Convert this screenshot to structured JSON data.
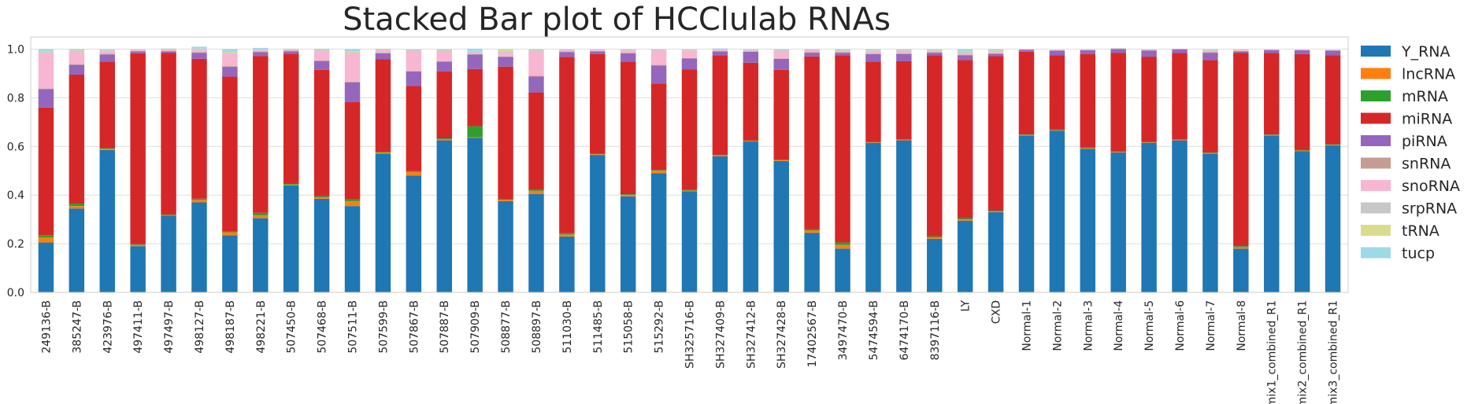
{
  "chart_data": {
    "type": "bar",
    "stacked": true,
    "title": "Stacked Bar plot of HCClulab RNAs",
    "xlabel": "",
    "ylabel": "",
    "ylim": [
      0,
      1.05
    ],
    "yticks": [
      "0.0",
      "0.2",
      "0.4",
      "0.6",
      "0.8",
      "1.0"
    ],
    "grid": true,
    "legend_position": "right",
    "categories": [
      "249136-B",
      "385247-B",
      "423976-B",
      "497411-B",
      "497497-B",
      "498127-B",
      "498187-B",
      "498221-B",
      "507450-B",
      "507468-B",
      "507511-B",
      "507599-B",
      "507867-B",
      "507887-B",
      "507909-B",
      "508877-B",
      "508897-B",
      "511030-B",
      "511485-B",
      "515058-B",
      "515292-B",
      "SH325716-B",
      "SH327409-B",
      "SH327412-B",
      "SH327428-B",
      "17402567-B",
      "3497470-B",
      "5474594-B",
      "6474170-B",
      "8397116-B",
      "LY",
      "CXD",
      "Normal-1",
      "Normal-2",
      "Normal-3",
      "Normal-4",
      "Normal-5",
      "Normal-6",
      "Normal-7",
      "Normal-8",
      "mix1_combined_R1",
      "mix2_combined_R1",
      "mix3_combined_R1"
    ],
    "series": [
      {
        "name": "Y_RNA",
        "color": "#1f77b4",
        "values": [
          0.205,
          0.345,
          0.585,
          0.19,
          0.315,
          0.37,
          0.235,
          0.305,
          0.44,
          0.385,
          0.355,
          0.57,
          0.48,
          0.625,
          0.635,
          0.375,
          0.405,
          0.23,
          0.565,
          0.395,
          0.49,
          0.415,
          0.56,
          0.62,
          0.54,
          0.245,
          0.18,
          0.615,
          0.625,
          0.22,
          0.295,
          0.33,
          0.645,
          0.665,
          0.59,
          0.575,
          0.615,
          0.625,
          0.57,
          0.18,
          0.645,
          0.58,
          0.605
        ]
      },
      {
        "name": "lncRNA",
        "color": "#ff7f0e",
        "values": [
          0.02,
          0.01,
          0.005,
          0.005,
          0.003,
          0.01,
          0.012,
          0.012,
          0.003,
          0.005,
          0.02,
          0.005,
          0.015,
          0.005,
          0.003,
          0.005,
          0.012,
          0.008,
          0.003,
          0.005,
          0.01,
          0.003,
          0.003,
          0.002,
          0.003,
          0.01,
          0.015,
          0.002,
          0.003,
          0.005,
          0.005,
          0.003,
          0.002,
          0.002,
          0.003,
          0.003,
          0.002,
          0.002,
          0.003,
          0.005,
          0.002,
          0.003,
          0.002
        ]
      },
      {
        "name": "mRNA",
        "color": "#2ca02c",
        "values": [
          0.01,
          0.01,
          0.003,
          0.003,
          0.002,
          0.005,
          0.005,
          0.01,
          0.003,
          0.005,
          0.008,
          0.003,
          0.003,
          0.003,
          0.045,
          0.003,
          0.005,
          0.005,
          0.002,
          0.003,
          0.003,
          0.003,
          0.002,
          0.002,
          0.002,
          0.005,
          0.01,
          0.002,
          0.002,
          0.005,
          0.005,
          0.003,
          0.002,
          0.002,
          0.002,
          0.002,
          0.002,
          0.002,
          0.002,
          0.005,
          0.002,
          0.002,
          0.002
        ]
      },
      {
        "name": "miRNA",
        "color": "#d62728",
        "values": [
          0.525,
          0.53,
          0.355,
          0.785,
          0.665,
          0.575,
          0.635,
          0.645,
          0.535,
          0.52,
          0.4,
          0.38,
          0.35,
          0.275,
          0.235,
          0.545,
          0.4,
          0.725,
          0.41,
          0.545,
          0.355,
          0.495,
          0.41,
          0.32,
          0.37,
          0.71,
          0.77,
          0.33,
          0.32,
          0.745,
          0.65,
          0.635,
          0.34,
          0.305,
          0.385,
          0.405,
          0.35,
          0.355,
          0.38,
          0.795,
          0.335,
          0.395,
          0.365
        ]
      },
      {
        "name": "piRNA",
        "color": "#9467bd",
        "values": [
          0.075,
          0.04,
          0.03,
          0.008,
          0.005,
          0.025,
          0.04,
          0.015,
          0.01,
          0.035,
          0.08,
          0.025,
          0.06,
          0.04,
          0.06,
          0.04,
          0.065,
          0.02,
          0.01,
          0.035,
          0.075,
          0.045,
          0.015,
          0.045,
          0.045,
          0.015,
          0.01,
          0.03,
          0.03,
          0.01,
          0.02,
          0.01,
          0.008,
          0.02,
          0.015,
          0.015,
          0.025,
          0.015,
          0.03,
          0.005,
          0.012,
          0.015,
          0.02
        ]
      },
      {
        "name": "snRNA",
        "color": "#c49c94",
        "values": [
          0.003,
          0.003,
          0.003,
          0.002,
          0.003,
          0.002,
          0.003,
          0.003,
          0.003,
          0.003,
          0.003,
          0.002,
          0.002,
          0.002,
          0.002,
          0.002,
          0.003,
          0.002,
          0.002,
          0.002,
          0.002,
          0.002,
          0.002,
          0.002,
          0.002,
          0.002,
          0.002,
          0.002,
          0.002,
          0.002,
          0.002,
          0.002,
          0.001,
          0.001,
          0.001,
          0.001,
          0.001,
          0.001,
          0.002,
          0.002,
          0.001,
          0.001,
          0.001
        ]
      },
      {
        "name": "snoRNA",
        "color": "#f7b6d2",
        "values": [
          0.145,
          0.05,
          0.01,
          0.003,
          0.005,
          0.01,
          0.05,
          0.005,
          0.003,
          0.04,
          0.115,
          0.01,
          0.08,
          0.04,
          0.005,
          0.015,
          0.1,
          0.005,
          0.003,
          0.01,
          0.06,
          0.03,
          0.003,
          0.003,
          0.03,
          0.008,
          0.005,
          0.01,
          0.01,
          0.005,
          0.005,
          0.005,
          0.001,
          0.001,
          0.001,
          0.001,
          0.002,
          0.001,
          0.005,
          0.003,
          0.001,
          0.001,
          0.001
        ]
      },
      {
        "name": "srpRNA",
        "color": "#c7c7c7",
        "values": [
          0.005,
          0.005,
          0.005,
          0.002,
          0.002,
          0.003,
          0.005,
          0.003,
          0.002,
          0.005,
          0.005,
          0.003,
          0.005,
          0.005,
          0.005,
          0.005,
          0.005,
          0.003,
          0.002,
          0.003,
          0.003,
          0.003,
          0.003,
          0.003,
          0.005,
          0.003,
          0.003,
          0.003,
          0.003,
          0.003,
          0.005,
          0.005,
          0.001,
          0.001,
          0.001,
          0.001,
          0.001,
          0.001,
          0.003,
          0.002,
          0.001,
          0.001,
          0.001
        ]
      },
      {
        "name": "tRNA",
        "color": "#dbdb8d",
        "values": [
          0.002,
          0.002,
          0.002,
          0.001,
          0.002,
          0.002,
          0.003,
          0.001,
          0.001,
          0.002,
          0.004,
          0.002,
          0.002,
          0.003,
          0.002,
          0.008,
          0.003,
          0.001,
          0.001,
          0.001,
          0.001,
          0.002,
          0.001,
          0.001,
          0.001,
          0.001,
          0.002,
          0.002,
          0.002,
          0.002,
          0.003,
          0.002,
          0.0,
          0.0,
          0.001,
          0.001,
          0.001,
          0.0,
          0.002,
          0.002,
          0.0,
          0.0,
          0.0
        ]
      },
      {
        "name": "tucp",
        "color": "#9edae5",
        "values": [
          0.01,
          0.005,
          0.002,
          0.001,
          0.001,
          0.008,
          0.012,
          0.006,
          0.002,
          0.002,
          0.01,
          0.002,
          0.002,
          0.002,
          0.01,
          0.002,
          0.002,
          0.001,
          0.002,
          0.001,
          0.001,
          0.002,
          0.004,
          0.002,
          0.002,
          0.001,
          0.003,
          0.004,
          0.003,
          0.003,
          0.01,
          0.005,
          0.0,
          0.0,
          0.001,
          0.001,
          0.001,
          0.0,
          0.003,
          0.001,
          0.0,
          0.0,
          0.0
        ]
      }
    ]
  }
}
